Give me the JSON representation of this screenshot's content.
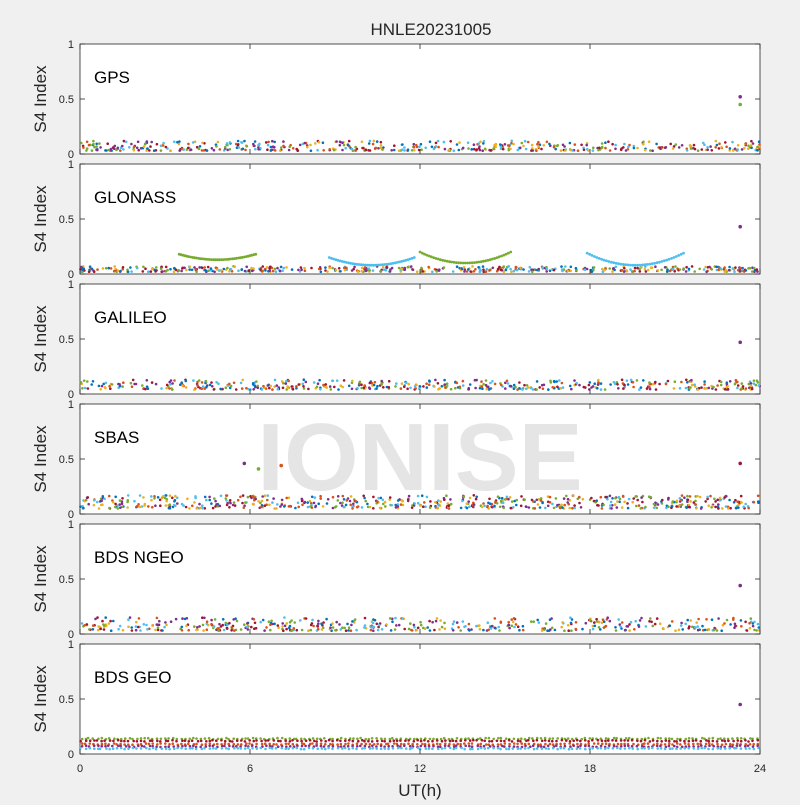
{
  "figure": {
    "title": "HNLE20231005",
    "xlabel": "UT(h)",
    "watermark": "IONISE"
  },
  "chart_data": [
    {
      "type": "scatter",
      "panel": "GPS",
      "ylabel": "S4 Index",
      "xlim": [
        0,
        24
      ],
      "ylim": [
        0,
        1
      ],
      "x_ticks": [
        0,
        6,
        12,
        18,
        24
      ],
      "y_ticks": [
        0,
        0.5,
        1
      ],
      "y_tick_labels": [
        "0",
        "0.5",
        "1"
      ],
      "baseline_range": [
        0.03,
        0.12
      ],
      "outliers": [
        {
          "x": 23.3,
          "y": 0.52
        },
        {
          "x": 23.3,
          "y": 0.45
        }
      ]
    },
    {
      "type": "scatter",
      "panel": "GLONASS",
      "ylabel": "S4 Index",
      "xlim": [
        0,
        24
      ],
      "ylim": [
        0,
        1
      ],
      "x_ticks": [
        0,
        6,
        12,
        18,
        24
      ],
      "y_ticks": [
        0,
        0.5,
        1
      ],
      "y_tick_labels": [
        "0",
        "0.5",
        "1"
      ],
      "baseline_range": [
        0.02,
        0.07
      ],
      "arcs": [
        {
          "x0": 3.5,
          "x1": 6.2,
          "y_edge": 0.18,
          "y_mid": 0.13
        },
        {
          "x0": 8.8,
          "x1": 11.8,
          "y_edge": 0.15,
          "y_mid": 0.08
        },
        {
          "x0": 12.0,
          "x1": 15.2,
          "y_edge": 0.2,
          "y_mid": 0.1
        },
        {
          "x0": 17.9,
          "x1": 21.3,
          "y_edge": 0.19,
          "y_mid": 0.08
        }
      ],
      "outliers": [
        {
          "x": 23.3,
          "y": 0.43
        }
      ]
    },
    {
      "type": "scatter",
      "panel": "GALILEO",
      "ylabel": "S4 Index",
      "xlim": [
        0,
        24
      ],
      "ylim": [
        0,
        1
      ],
      "x_ticks": [
        0,
        6,
        12,
        18,
        24
      ],
      "y_ticks": [
        0,
        0.5,
        1
      ],
      "y_tick_labels": [
        "0",
        "0.5",
        "1"
      ],
      "baseline_range": [
        0.04,
        0.13
      ],
      "outliers": [
        {
          "x": 23.3,
          "y": 0.47
        }
      ]
    },
    {
      "type": "scatter",
      "panel": "SBAS",
      "ylabel": "S4 Index",
      "xlim": [
        0,
        24
      ],
      "ylim": [
        0,
        1
      ],
      "x_ticks": [
        0,
        6,
        12,
        18,
        24
      ],
      "y_ticks": [
        0,
        0.5,
        1
      ],
      "y_tick_labels": [
        "0",
        "0.5",
        "1"
      ],
      "baseline_range": [
        0.05,
        0.17
      ],
      "outliers": [
        {
          "x": 5.8,
          "y": 0.46
        },
        {
          "x": 6.3,
          "y": 0.41
        },
        {
          "x": 7.1,
          "y": 0.44
        },
        {
          "x": 23.3,
          "y": 0.46
        }
      ]
    },
    {
      "type": "scatter",
      "panel": "BDS NGEO",
      "ylabel": "S4 Index",
      "xlim": [
        0,
        24
      ],
      "ylim": [
        0,
        1
      ],
      "x_ticks": [
        0,
        6,
        12,
        18,
        24
      ],
      "y_ticks": [
        0,
        0.5,
        1
      ],
      "y_tick_labels": [
        "0",
        "0.5",
        "1"
      ],
      "baseline_range": [
        0.03,
        0.15
      ],
      "outliers": [
        {
          "x": 23.3,
          "y": 0.44
        }
      ]
    },
    {
      "type": "scatter",
      "panel": "BDS GEO",
      "ylabel": "S4 Index",
      "xlim": [
        0,
        24
      ],
      "ylim": [
        0,
        1
      ],
      "x_ticks": [
        0,
        6,
        12,
        18,
        24
      ],
      "y_ticks": [
        0,
        0.5,
        1
      ],
      "y_tick_labels": [
        "0",
        "0.5",
        "1"
      ],
      "x_tick_labels": [
        "0",
        "6",
        "12",
        "18",
        "24"
      ],
      "bands": [
        0.14,
        0.12,
        0.09,
        0.07,
        0.05
      ],
      "outliers": [
        {
          "x": 23.3,
          "y": 0.45
        }
      ]
    }
  ],
  "colors": [
    "#0072bd",
    "#d95319",
    "#edb120",
    "#7e2f8e",
    "#77ac30",
    "#4dbeee",
    "#a2142f"
  ]
}
